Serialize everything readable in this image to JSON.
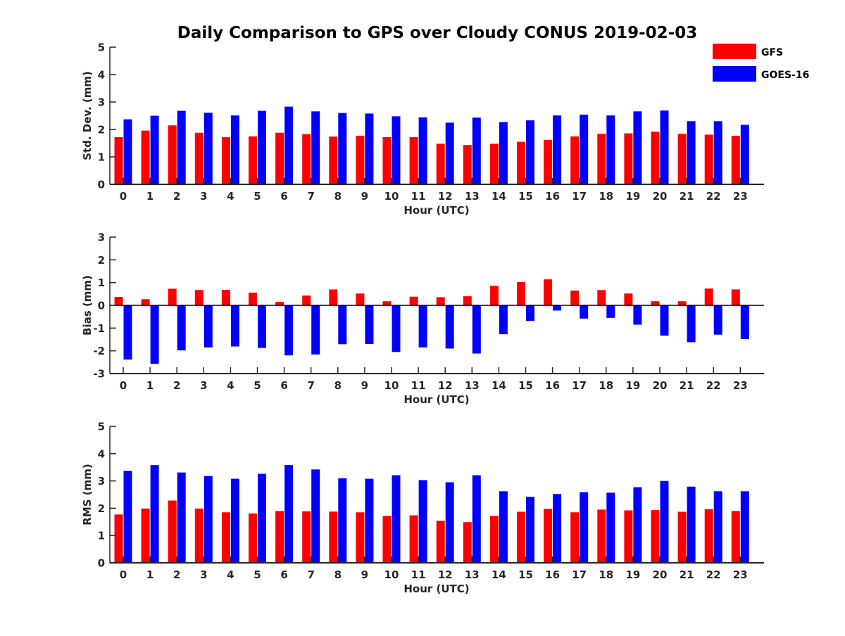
{
  "title": "Daily Comparison to GPS over Cloudy CONUS 2019-02-03",
  "legend": [
    {
      "name": "GFS",
      "color": "#ff0000"
    },
    {
      "name": "GOES-16",
      "color": "#0000ff"
    }
  ],
  "chart_data": [
    {
      "type": "bar",
      "id": "std",
      "title": "",
      "xlabel": "Hour (UTC)",
      "ylabel": "Std. Dev. (mm)",
      "ylim": [
        0,
        5
      ],
      "yticks": [
        0,
        1,
        2,
        3,
        4,
        5
      ],
      "categories": [
        "0",
        "1",
        "2",
        "3",
        "4",
        "5",
        "6",
        "7",
        "8",
        "9",
        "10",
        "11",
        "12",
        "13",
        "14",
        "15",
        "16",
        "17",
        "18",
        "19",
        "20",
        "21",
        "22",
        "23"
      ],
      "series": [
        {
          "name": "GFS",
          "color": "#ff0000",
          "values": [
            1.72,
            1.96,
            2.15,
            1.88,
            1.72,
            1.75,
            1.88,
            1.83,
            1.74,
            1.77,
            1.72,
            1.72,
            1.48,
            1.43,
            1.48,
            1.55,
            1.62,
            1.75,
            1.84,
            1.86,
            1.92,
            1.84,
            1.81,
            1.77
          ]
        },
        {
          "name": "GOES-16",
          "color": "#0000ff",
          "values": [
            2.37,
            2.5,
            2.68,
            2.61,
            2.51,
            2.68,
            2.83,
            2.66,
            2.6,
            2.58,
            2.48,
            2.44,
            2.25,
            2.43,
            2.27,
            2.33,
            2.51,
            2.54,
            2.51,
            2.66,
            2.69,
            2.3,
            2.3,
            2.17
          ]
        }
      ]
    },
    {
      "type": "bar",
      "id": "bias",
      "title": "",
      "xlabel": "Hour (UTC)",
      "ylabel": "Bias (mm)",
      "ylim": [
        -3,
        3
      ],
      "yticks": [
        -3,
        -2,
        -1,
        0,
        1,
        2,
        3
      ],
      "categories": [
        "0",
        "1",
        "2",
        "3",
        "4",
        "5",
        "6",
        "7",
        "8",
        "9",
        "10",
        "11",
        "12",
        "13",
        "14",
        "15",
        "16",
        "17",
        "18",
        "19",
        "20",
        "21",
        "22",
        "23"
      ],
      "series": [
        {
          "name": "GFS",
          "color": "#ff0000",
          "values": [
            0.37,
            0.27,
            0.73,
            0.67,
            0.68,
            0.56,
            0.15,
            0.43,
            0.7,
            0.52,
            0.18,
            0.38,
            0.36,
            0.4,
            0.86,
            1.02,
            1.14,
            0.65,
            0.67,
            0.52,
            0.18,
            0.18,
            0.74,
            0.7
          ]
        },
        {
          "name": "GOES-16",
          "color": "#0000ff",
          "values": [
            -2.38,
            -2.57,
            -1.98,
            -1.85,
            -1.81,
            -1.87,
            -2.2,
            -2.16,
            -1.71,
            -1.7,
            -2.05,
            -1.85,
            -1.9,
            -2.12,
            -1.27,
            -0.68,
            -0.23,
            -0.58,
            -0.55,
            -0.85,
            -1.33,
            -1.62,
            -1.29,
            -1.48
          ]
        }
      ]
    },
    {
      "type": "bar",
      "id": "rms",
      "title": "",
      "xlabel": "Hour (UTC)",
      "ylabel": "RMS (mm)",
      "ylim": [
        0,
        5
      ],
      "yticks": [
        0,
        1,
        2,
        3,
        4,
        5
      ],
      "categories": [
        "0",
        "1",
        "2",
        "3",
        "4",
        "5",
        "6",
        "7",
        "8",
        "9",
        "10",
        "11",
        "12",
        "13",
        "14",
        "15",
        "16",
        "17",
        "18",
        "19",
        "20",
        "21",
        "22",
        "23"
      ],
      "series": [
        {
          "name": "GFS",
          "color": "#ff0000",
          "values": [
            1.77,
            1.99,
            2.28,
            1.99,
            1.85,
            1.81,
            1.9,
            1.89,
            1.88,
            1.85,
            1.72,
            1.74,
            1.54,
            1.49,
            1.72,
            1.87,
            1.98,
            1.85,
            1.95,
            1.92,
            1.93,
            1.87,
            1.97,
            1.9
          ]
        },
        {
          "name": "GOES-16",
          "color": "#0000ff",
          "values": [
            3.37,
            3.58,
            3.31,
            3.18,
            3.08,
            3.26,
            3.58,
            3.42,
            3.1,
            3.08,
            3.21,
            3.03,
            2.95,
            3.21,
            2.62,
            2.42,
            2.52,
            2.59,
            2.57,
            2.77,
            3.0,
            2.79,
            2.62,
            2.62
          ]
        }
      ]
    }
  ]
}
